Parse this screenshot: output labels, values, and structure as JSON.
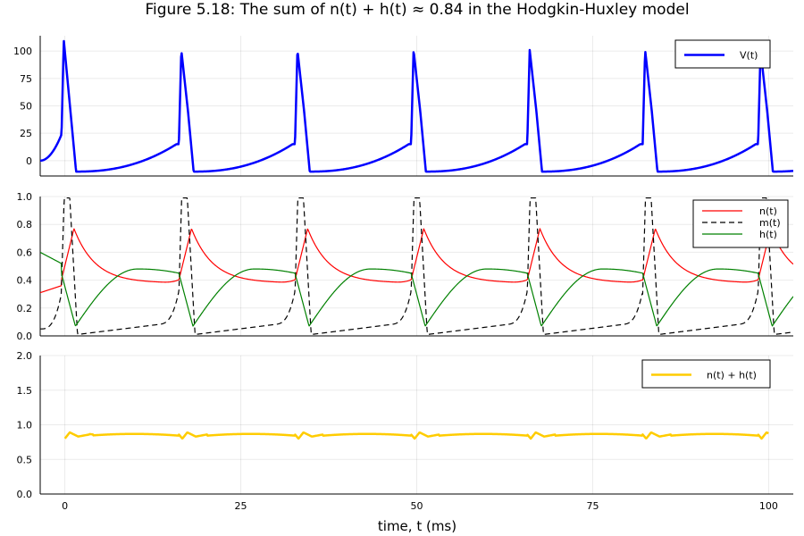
{
  "chart_data": {
    "type": "line",
    "title": "Figure 5.18: The sum of n(t) + h(t) ≈ 0.84 in the Hodgkin-Huxley model",
    "xlabel": "time, t (ms)",
    "xlim": [
      -3.5,
      103.5
    ],
    "xticks": [
      0,
      25,
      50,
      75,
      100
    ],
    "spike_times": [
      -0.5,
      16.2,
      32.7,
      49.2,
      65.7,
      82.1,
      98.5
    ],
    "panels": [
      {
        "ylim": [
          -14,
          114
        ],
        "yticks": [
          0,
          25,
          50,
          75,
          100
        ],
        "legend": "top-right",
        "series": [
          {
            "name": "V(t)",
            "color": "#0000ff",
            "style": "solid",
            "width": 2.5,
            "values": {
              "rest": -10,
              "peak_first": 110,
              "peak": 101,
              "shoulder": 45,
              "pre_spike": 15,
              "start": 0
            }
          }
        ]
      },
      {
        "ylim": [
          0,
          1
        ],
        "yticks": [
          0.0,
          0.2,
          0.4,
          0.6,
          0.8,
          1.0
        ],
        "legend": "top-right",
        "series": [
          {
            "name": "n(t)",
            "color": "#ff0000",
            "style": "solid",
            "width": 1.2,
            "values": {
              "min": 0.38,
              "max": 0.77
            }
          },
          {
            "name": "m(t)",
            "color": "#000000",
            "style": "dashed",
            "width": 1.2,
            "values": {
              "min": 0.01,
              "max": 0.99
            }
          },
          {
            "name": "h(t)",
            "color": "#008000",
            "style": "solid",
            "width": 1.2,
            "values": {
              "min": 0.07,
              "max": 0.48
            }
          }
        ]
      },
      {
        "ylim": [
          0,
          2
        ],
        "yticks": [
          0.0,
          0.5,
          1.0,
          1.5,
          2.0
        ],
        "legend": "top-right",
        "series": [
          {
            "name": "n(t) + h(t)",
            "color": "#ffcc00",
            "style": "solid",
            "width": 2.5,
            "values": {
              "mean": 0.86,
              "start": 0.91,
              "dip": 0.8
            }
          }
        ]
      }
    ]
  }
}
